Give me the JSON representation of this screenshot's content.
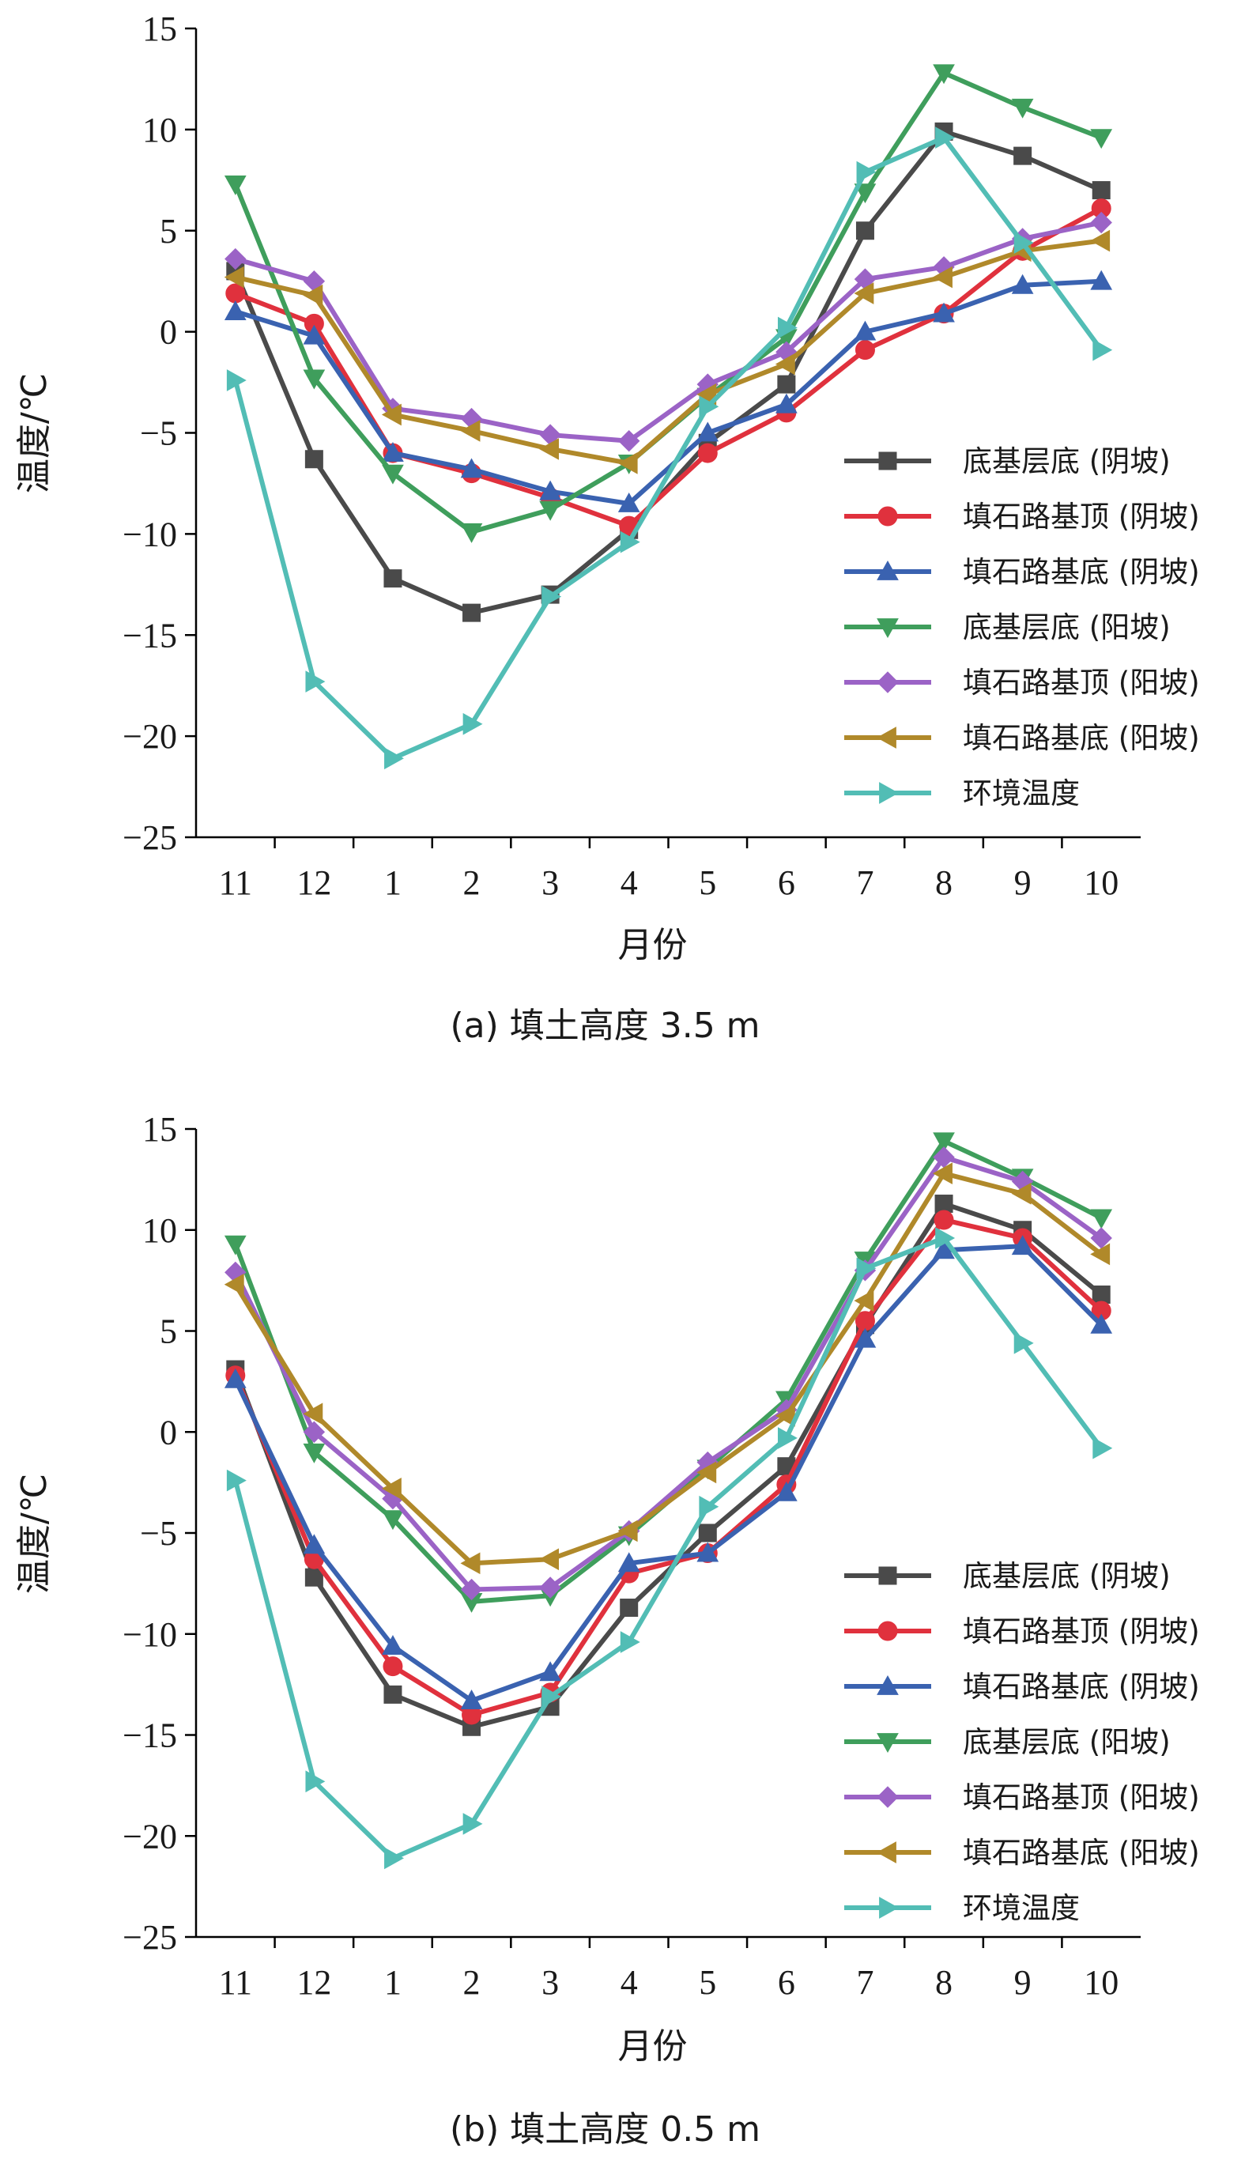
{
  "chart_data": [
    {
      "type": "line",
      "caption": "(a) 填土高度 3.5 m",
      "xlabel": "月份",
      "ylabel": "温度/℃",
      "categories": [
        "11",
        "12",
        "1",
        "2",
        "3",
        "4",
        "5",
        "6",
        "7",
        "8",
        "9",
        "10"
      ],
      "ylim": [
        -25,
        15
      ],
      "yticks": [
        15,
        10,
        5,
        0,
        -5,
        -10,
        -15,
        -20,
        -25
      ],
      "grid": false,
      "legend_position": "bottom-right",
      "series": [
        {
          "name": "底基层底 (阴坡)",
          "color": "#4a4a4a",
          "marker": "square",
          "values": [
            3.0,
            -6.3,
            -12.2,
            -13.9,
            -13.0,
            -9.8,
            -5.5,
            -2.6,
            5.0,
            9.9,
            8.7,
            7.0
          ]
        },
        {
          "name": "填石路基顶 (阴坡)",
          "color": "#e0313d",
          "marker": "circle",
          "values": [
            1.9,
            0.4,
            -6.0,
            -7.0,
            -8.2,
            -9.6,
            -6.0,
            -4.0,
            -0.9,
            0.9,
            4.0,
            6.1
          ]
        },
        {
          "name": "填石路基底 (阴坡)",
          "color": "#3a62b0",
          "marker": "triangle-up",
          "values": [
            1.0,
            -0.2,
            -6.0,
            -6.8,
            -7.9,
            -8.5,
            -5.0,
            -3.6,
            0.0,
            0.9,
            2.3,
            2.5
          ]
        },
        {
          "name": "底基层底 (阳坡)",
          "color": "#3f9e5c",
          "marker": "triangle-down",
          "values": [
            7.3,
            -2.3,
            -7.0,
            -9.9,
            -8.8,
            -6.5,
            -3.2,
            -0.3,
            6.9,
            12.8,
            11.1,
            9.6
          ]
        },
        {
          "name": "填石路基顶 (阳坡)",
          "color": "#9b63c6",
          "marker": "diamond",
          "values": [
            3.6,
            2.5,
            -3.8,
            -4.3,
            -5.1,
            -5.4,
            -2.6,
            -1.0,
            2.6,
            3.2,
            4.6,
            5.4
          ]
        },
        {
          "name": "填石路基底 (阳坡)",
          "color": "#b0892a",
          "marker": "triangle-left",
          "values": [
            2.7,
            1.8,
            -4.1,
            -4.9,
            -5.8,
            -6.5,
            -3.1,
            -1.6,
            1.9,
            2.7,
            4.0,
            4.5
          ]
        },
        {
          "name": "环境温度",
          "color": "#52bdb5",
          "marker": "triangle-right",
          "values": [
            -2.4,
            -17.3,
            -21.1,
            -19.4,
            -13.1,
            -10.4,
            -3.7,
            0.2,
            7.9,
            9.6,
            4.4,
            -0.9
          ]
        }
      ]
    },
    {
      "type": "line",
      "caption": "(b) 填土高度 0.5 m",
      "xlabel": "月份",
      "ylabel": "温度/℃",
      "categories": [
        "11",
        "12",
        "1",
        "2",
        "3",
        "4",
        "5",
        "6",
        "7",
        "8",
        "9",
        "10"
      ],
      "ylim": [
        -25,
        15
      ],
      "yticks": [
        15,
        10,
        5,
        0,
        -5,
        -10,
        -15,
        -20,
        -25
      ],
      "grid": false,
      "legend_position": "bottom-right",
      "series": [
        {
          "name": "底基层底 (阴坡)",
          "color": "#4a4a4a",
          "marker": "square",
          "values": [
            3.1,
            -7.2,
            -13.0,
            -14.6,
            -13.6,
            -8.7,
            -5.0,
            -1.7,
            5.3,
            11.3,
            10.0,
            6.8
          ]
        },
        {
          "name": "填石路基顶 (阴坡)",
          "color": "#e0313d",
          "marker": "circle",
          "values": [
            2.8,
            -6.3,
            -11.6,
            -14.0,
            -12.9,
            -7.0,
            -6.0,
            -2.6,
            5.5,
            10.5,
            9.6,
            6.0
          ]
        },
        {
          "name": "填石路基底 (阴坡)",
          "color": "#3a62b0",
          "marker": "triangle-up",
          "values": [
            2.6,
            -5.6,
            -10.6,
            -13.3,
            -11.9,
            -6.5,
            -6.0,
            -3.0,
            4.6,
            9.0,
            9.2,
            5.3
          ]
        },
        {
          "name": "底基层底 (阳坡)",
          "color": "#3f9e5c",
          "marker": "triangle-down",
          "values": [
            9.3,
            -1.0,
            -4.3,
            -8.4,
            -8.1,
            -5.1,
            -1.8,
            1.6,
            8.5,
            14.4,
            12.6,
            10.6
          ]
        },
        {
          "name": "填石路基顶 (阳坡)",
          "color": "#9b63c6",
          "marker": "diamond",
          "values": [
            7.9,
            0.0,
            -3.3,
            -7.8,
            -7.7,
            -4.9,
            -1.5,
            1.1,
            8.0,
            13.6,
            12.4,
            9.6
          ]
        },
        {
          "name": "填石路基底 (阳坡)",
          "color": "#b0892a",
          "marker": "triangle-left",
          "values": [
            7.3,
            0.9,
            -2.8,
            -6.5,
            -6.3,
            -4.9,
            -2.0,
            0.8,
            6.5,
            12.8,
            11.8,
            8.8
          ]
        },
        {
          "name": "环境温度",
          "color": "#52bdb5",
          "marker": "triangle-right",
          "values": [
            -2.4,
            -17.3,
            -21.1,
            -19.4,
            -13.1,
            -10.4,
            -3.7,
            -0.3,
            8.1,
            9.6,
            4.4,
            -0.8
          ]
        }
      ]
    }
  ]
}
